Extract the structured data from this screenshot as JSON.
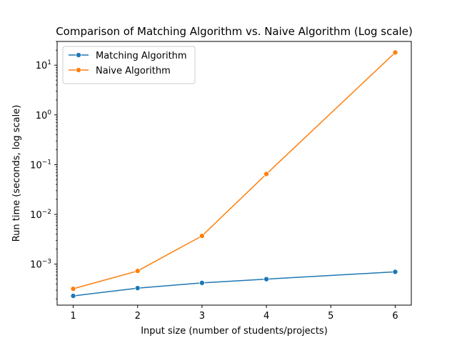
{
  "chart_data": {
    "type": "line",
    "title": "Comparison of Matching Algorithm vs. Naive Algorithm (Log scale)",
    "xlabel": "Input size (number of students/projects)",
    "ylabel": "Run time (seconds, log scale)",
    "yscale": "log",
    "xlim": [
      0.75,
      6.25
    ],
    "ylim": [
      0.00015,
      30
    ],
    "xticks": [
      1,
      2,
      3,
      4,
      5,
      6
    ],
    "yticks": [
      0.001,
      0.01,
      0.1,
      1,
      10
    ],
    "ytick_exponents": [
      "−3",
      "−2",
      "−1",
      "0",
      "1"
    ],
    "ytick_base": "10",
    "grid": false,
    "legend_position": "top-left",
    "series": [
      {
        "name": "Matching Algorithm",
        "color": "#1f77b4",
        "x": [
          1,
          2,
          3,
          4,
          6
        ],
        "values": [
          0.00023,
          0.00033,
          0.00042,
          0.0005,
          0.0007
        ]
      },
      {
        "name": "Naive Algorithm",
        "color": "#ff7f0e",
        "x": [
          1,
          2,
          3,
          4,
          6
        ],
        "values": [
          0.00032,
          0.00073,
          0.0037,
          0.065,
          18.0
        ]
      }
    ]
  }
}
